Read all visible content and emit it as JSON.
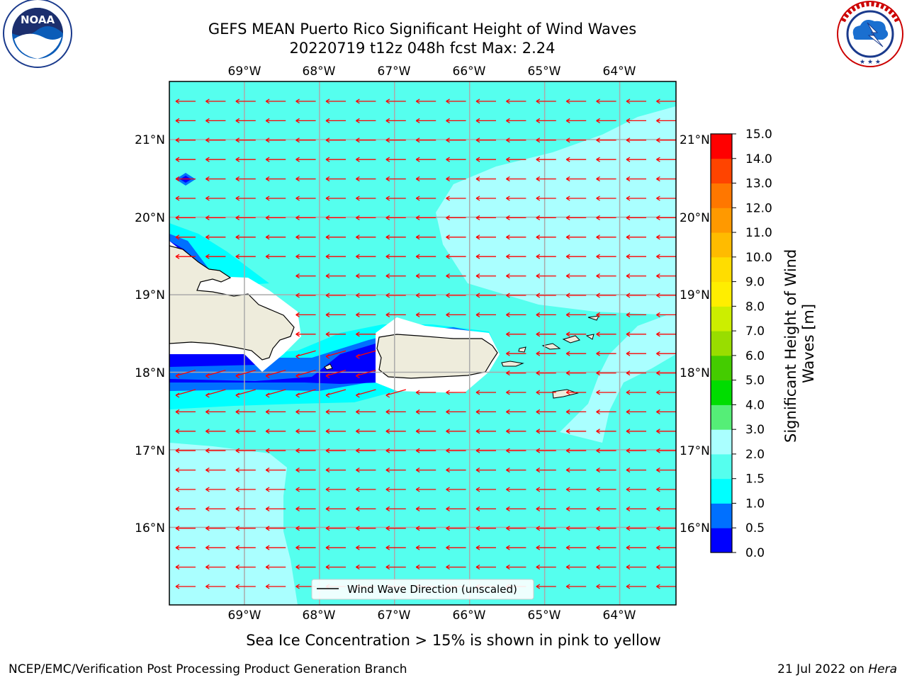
{
  "title": {
    "line1": "GEFS MEAN Puerto Rico Significant Height of Wind Waves",
    "line2": "20220719 t12z 048h fcst   Max: 2.24"
  },
  "logos": {
    "noaa": {
      "text": "NOAA",
      "ring_text": "NATIONAL OCEANIC AND ATMOSPHERIC ADMINISTRATION · U.S. DEPARTMENT OF COMMERCE"
    },
    "nws": {
      "ring_text": "NATIONAL WEATHER SERVICE"
    }
  },
  "map": {
    "lon_labels": [
      "69°W",
      "68°W",
      "67°W",
      "66°W",
      "65°W",
      "64°W"
    ],
    "lat_labels": [
      "21°N",
      "20°N",
      "19°N",
      "18°N",
      "17°N",
      "16°N"
    ],
    "extent": {
      "lon": [
        -70.0,
        -63.25
      ],
      "lat": [
        15.0,
        21.75
      ]
    },
    "legend_label": "Wind Wave Direction (unscaled)",
    "arrow_color": "#ff0000",
    "land_color": "#eeecdc",
    "grid": true
  },
  "colorbar": {
    "label": "Significant Height of Wind Waves [m]",
    "levels": [
      "0.0",
      "0.5",
      "1.0",
      "1.5",
      "2.0",
      "3.0",
      "4.0",
      "5.0",
      "6.0",
      "7.0",
      "8.0",
      "9.0",
      "10.0",
      "11.0",
      "12.0",
      "13.0",
      "14.0",
      "15.0"
    ],
    "colors": [
      "#0000ff",
      "#0070ff",
      "#00ffff",
      "#55ffee",
      "#aaffff",
      "#55ee77",
      "#00dd00",
      "#44cc00",
      "#99dd00",
      "#ccee00",
      "#ffee00",
      "#ffdd00",
      "#ffbb00",
      "#ff9900",
      "#ff7700",
      "#ff4400",
      "#ff0000"
    ]
  },
  "footer": {
    "note": "Sea Ice Concentration > 15% is shown in pink to yellow",
    "credit": "NCEP/EMC/Verification Post Processing Product Generation Branch",
    "date": "21 Jul 2022 on ",
    "host": "Hera"
  }
}
